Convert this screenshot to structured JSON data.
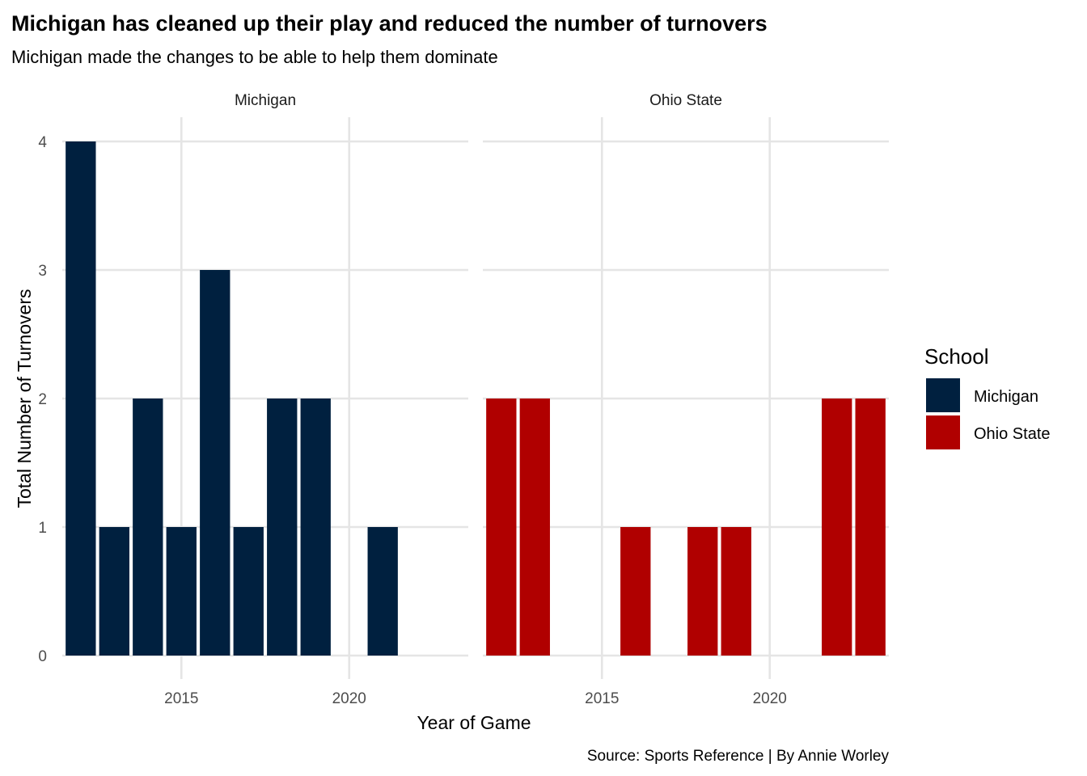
{
  "chart_data": {
    "type": "bar",
    "title": "Michigan has cleaned up their play and reduced the number of turnovers",
    "subtitle": "Michigan made the changes to be able to help them dominate",
    "caption": "Source: Sports Reference | By Annie Worley",
    "xlabel": "Year of Game",
    "ylabel": "Total Number of Turnovers",
    "xlim": [
      2011.45,
      2023.55
    ],
    "ylim": [
      0,
      4.2
    ],
    "x_ticks": [
      "2015",
      "2020"
    ],
    "y_ticks": [
      "0",
      "1",
      "2",
      "3",
      "4"
    ],
    "grid": true,
    "legend_position": "right",
    "legend": {
      "title": "School",
      "items": [
        {
          "label": "Michigan",
          "color": "#00203F"
        },
        {
          "label": "Ohio State",
          "color": "#B00000"
        }
      ]
    },
    "facets": [
      {
        "name": "Michigan",
        "color": "#00203F",
        "x": [
          2012,
          2013,
          2014,
          2015,
          2016,
          2017,
          2018,
          2019,
          2021
        ],
        "values": [
          4,
          1,
          2,
          1,
          3,
          1,
          2,
          2,
          1
        ]
      },
      {
        "name": "Ohio State",
        "color": "#B00000",
        "x": [
          2012,
          2013,
          2016,
          2018,
          2019,
          2022,
          2023
        ],
        "values": [
          2,
          2,
          1,
          1,
          1,
          2,
          2
        ]
      }
    ]
  }
}
